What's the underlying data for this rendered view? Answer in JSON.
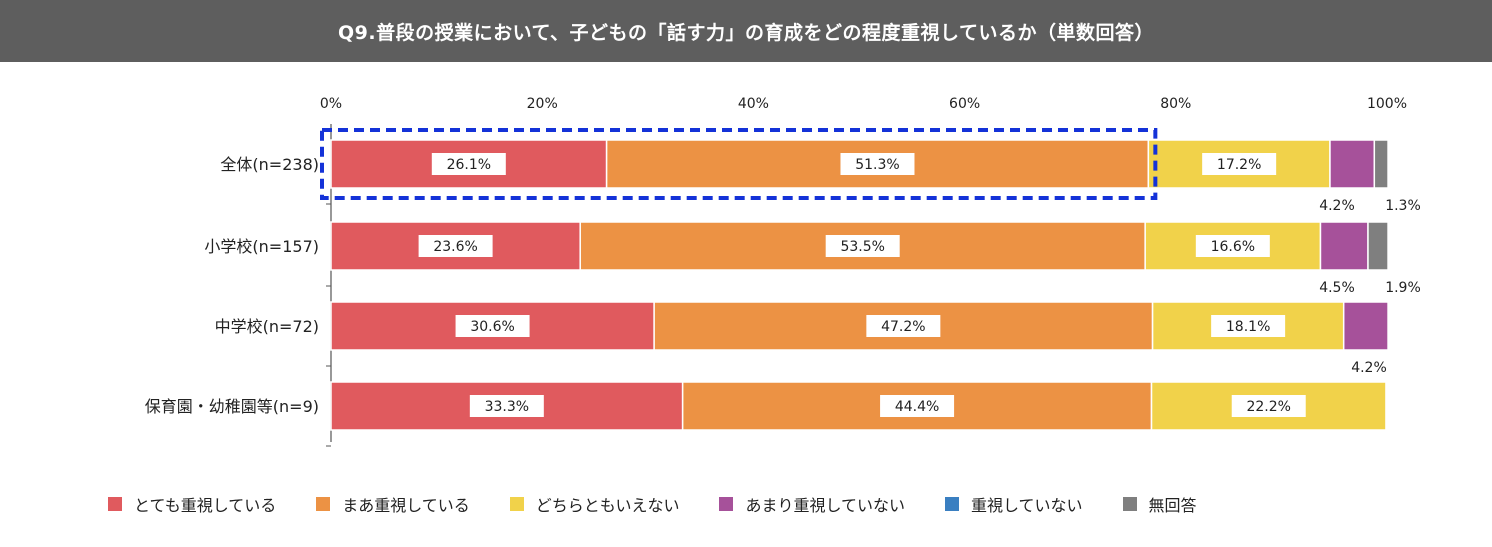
{
  "chart_data": {
    "type": "bar",
    "orientation": "horizontal",
    "stacked": true,
    "percent": true,
    "title": "Q9.普段の授業において、子どもの「話す力」の育成をどの程度重視しているか（単数回答）",
    "categories": [
      "全体(n=238)",
      "小学校(n=157)",
      "中学校(n=72)",
      "保育園・幼稚園等(n=9)"
    ],
    "x_ticks": [
      "0%",
      "20%",
      "40%",
      "60%",
      "80%",
      "100%"
    ],
    "xlim": [
      0,
      100
    ],
    "grid": false,
    "legend_position": "bottom",
    "series": [
      {
        "name": "とても重視している",
        "color": "#e05a5e",
        "values": [
          26.1,
          23.6,
          30.6,
          33.3
        ],
        "labels": [
          "26.1%",
          "23.6%",
          "30.6%",
          "33.3%"
        ]
      },
      {
        "name": "まあ重視している",
        "color": "#ec9244",
        "values": [
          51.3,
          53.5,
          47.2,
          44.4
        ],
        "labels": [
          "51.3%",
          "53.5%",
          "47.2%",
          "44.4%"
        ]
      },
      {
        "name": "どちらともいえない",
        "color": "#f1d24a",
        "values": [
          17.2,
          16.6,
          18.1,
          22.2
        ],
        "labels": [
          "17.2%",
          "16.6%",
          "18.1%",
          "22.2%"
        ]
      },
      {
        "name": "あまり重視していない",
        "color": "#a6519a",
        "values": [
          4.2,
          4.5,
          4.2,
          0
        ],
        "labels": [
          "4.2%",
          "4.5%",
          "4.2%",
          ""
        ]
      },
      {
        "name": "重視していない",
        "color": "#3a7fc1",
        "values": [
          0,
          0,
          0,
          0
        ],
        "labels": [
          "",
          "",
          "",
          ""
        ]
      },
      {
        "name": "無回答",
        "color": "#7f7f7f",
        "values": [
          1.3,
          1.9,
          0,
          0
        ],
        "labels": [
          "1.3%",
          "1.9%",
          "",
          ""
        ]
      }
    ],
    "highlight": {
      "category_index": 0,
      "series_count": 2,
      "color": "#1432d8"
    }
  }
}
